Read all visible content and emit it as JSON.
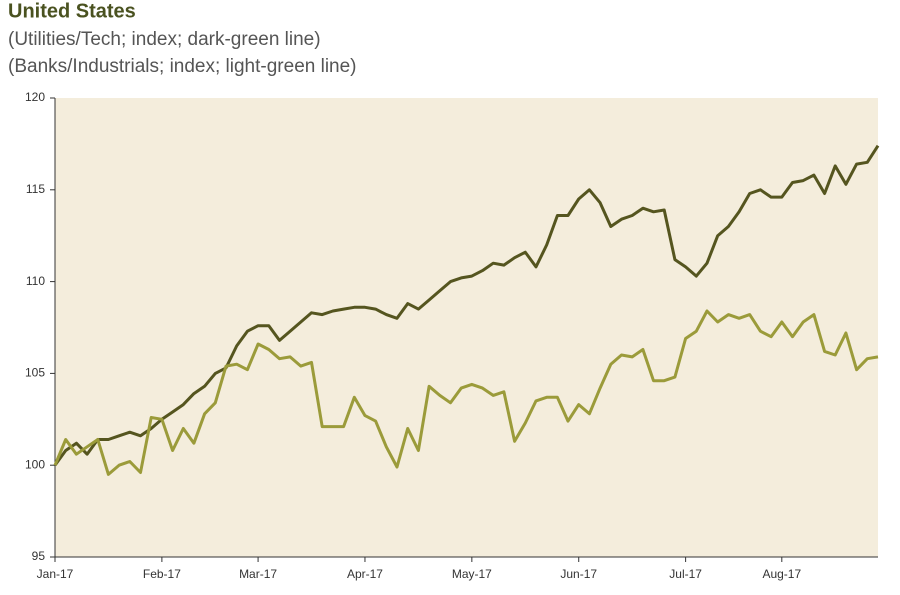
{
  "chart_data": {
    "type": "line",
    "title": "United States",
    "subtitle": [
      "(Utilities/Tech; index; dark-green line)",
      "(Banks/Industrials; index; light-green line)"
    ],
    "categories": [
      "Jan-17",
      null,
      null,
      null,
      null,
      null,
      null,
      null,
      null,
      null,
      "Feb-17",
      null,
      null,
      null,
      null,
      null,
      null,
      null,
      null,
      "Mar-17",
      null,
      null,
      null,
      null,
      null,
      null,
      null,
      null,
      null,
      "Apr-17",
      null,
      null,
      null,
      null,
      null,
      null,
      null,
      null,
      null,
      "May-17",
      null,
      null,
      null,
      null,
      null,
      null,
      null,
      null,
      null,
      "Jun-17",
      null,
      null,
      null,
      null,
      null,
      null,
      null,
      null,
      null,
      "Jul-17",
      null,
      null,
      null,
      null,
      null,
      null,
      null,
      null,
      "Aug-17",
      null,
      null,
      null,
      null,
      null,
      null,
      null,
      null,
      null
    ],
    "series": [
      {
        "color": "#55551f",
        "values": [
          100,
          100.8,
          101.2,
          100.6,
          101.4,
          101.4,
          101.6,
          101.8,
          101.6,
          102.0,
          102.5,
          102.9,
          103.3,
          103.9,
          104.3,
          105.0,
          105.3,
          106.5,
          107.3,
          107.6,
          107.6,
          106.8,
          107.3,
          107.8,
          108.3,
          108.2,
          108.4,
          108.5,
          108.6,
          108.6,
          108.5,
          108.2,
          108.0,
          108.8,
          108.5,
          109.0,
          109.5,
          110.0,
          110.2,
          110.3,
          110.6,
          111.0,
          110.9,
          111.3,
          111.6,
          110.8,
          112.0,
          113.6,
          113.6,
          114.5,
          115.0,
          114.3,
          113.0,
          113.4,
          113.6,
          114.0,
          113.8,
          113.9,
          111.2,
          110.8,
          110.3,
          111.0,
          112.5,
          113.0,
          113.8,
          114.8,
          115.0,
          114.6,
          114.6,
          115.4,
          115.5,
          115.8,
          114.8,
          116.3,
          115.3,
          116.4,
          116.5,
          117.4
        ]
      },
      {
        "color": "#9b9b3a",
        "values": [
          100,
          101.4,
          100.6,
          101.0,
          101.4,
          99.5,
          100.0,
          100.2,
          99.6,
          102.6,
          102.5,
          100.8,
          102.0,
          101.2,
          102.8,
          103.4,
          105.4,
          105.5,
          105.2,
          106.6,
          106.3,
          105.8,
          105.9,
          105.4,
          105.6,
          102.1,
          102.1,
          102.1,
          103.7,
          102.7,
          102.4,
          101.0,
          99.9,
          102.0,
          100.8,
          104.3,
          103.8,
          103.4,
          104.2,
          104.4,
          104.2,
          103.8,
          104.0,
          101.3,
          102.3,
          103.5,
          103.7,
          103.7,
          102.4,
          103.3,
          102.8,
          104.2,
          105.5,
          106.0,
          105.9,
          106.3,
          104.6,
          104.6,
          104.8,
          106.9,
          107.3,
          108.4,
          107.8,
          108.2,
          108.0,
          108.2,
          107.3,
          107.0,
          107.8,
          107.0,
          107.8,
          108.2,
          106.2,
          106.0,
          107.2,
          105.2,
          105.8,
          105.9
        ]
      }
    ],
    "ylim": [
      95,
      120
    ],
    "yticks": [
      95,
      100,
      105,
      110,
      115,
      120
    ]
  }
}
